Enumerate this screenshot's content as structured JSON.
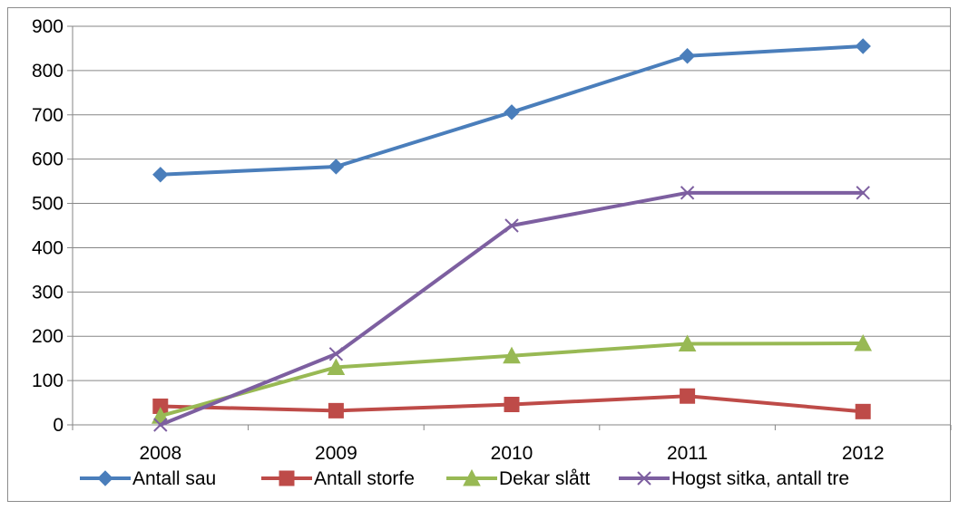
{
  "chart_data": {
    "type": "line",
    "title": "",
    "xlabel": "",
    "ylabel": "",
    "categories": [
      "2008",
      "2009",
      "2010",
      "2011",
      "2012"
    ],
    "ylim": [
      0,
      900
    ],
    "yticks": [
      0,
      100,
      200,
      300,
      400,
      500,
      600,
      700,
      800,
      900
    ],
    "grid": "horizontal",
    "legend_position": "bottom",
    "series": [
      {
        "name": "Antall sau",
        "values": [
          565,
          583,
          706,
          833,
          855
        ],
        "color": "#4a7ebb",
        "marker": "diamond"
      },
      {
        "name": "Antall storfe",
        "values": [
          42,
          32,
          46,
          65,
          30
        ],
        "color": "#be4b48",
        "marker": "square"
      },
      {
        "name": "Dekar slått",
        "values": [
          20,
          130,
          156,
          183,
          184
        ],
        "color": "#98b954",
        "marker": "triangle"
      },
      {
        "name": "Hogst sitka, antall tre",
        "values": [
          0,
          160,
          450,
          524,
          524
        ],
        "color": "#7d5fa0",
        "marker": "x"
      }
    ]
  }
}
